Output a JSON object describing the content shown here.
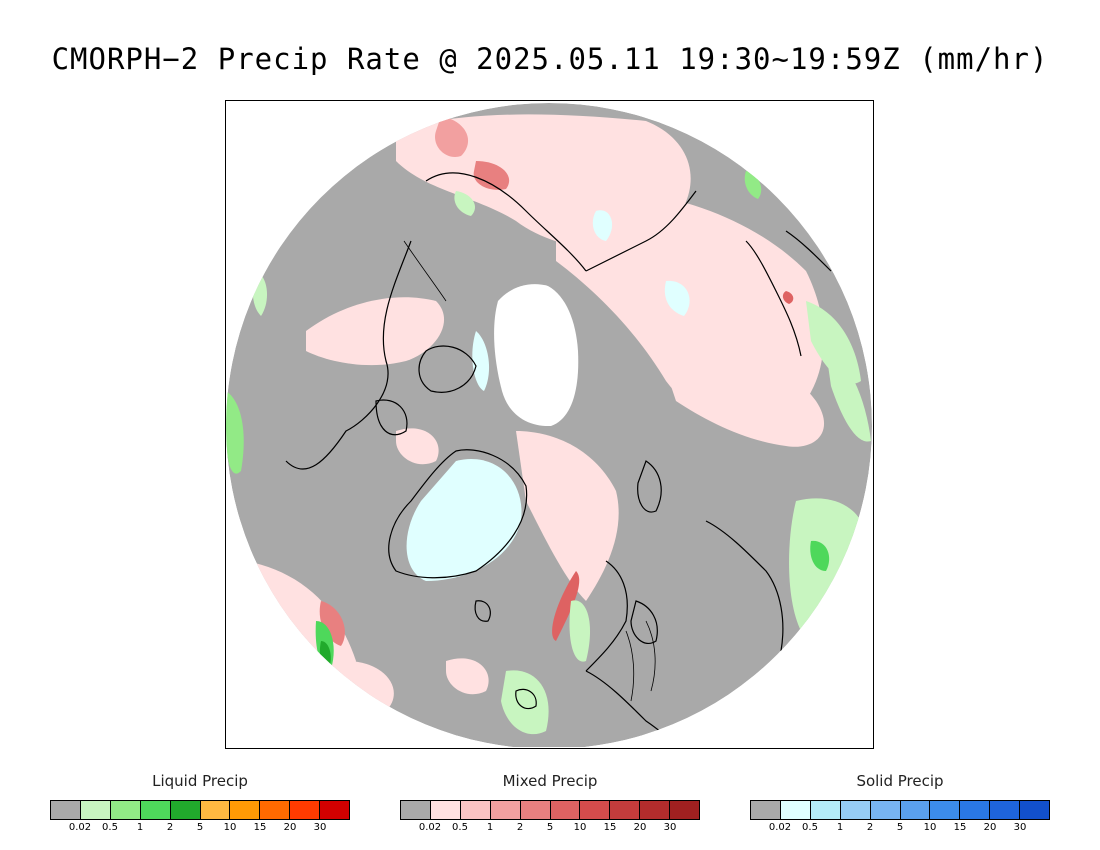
{
  "title": "CMORPH−2 Precip Rate @ 2025.05.11 19:30~19:59Z (mm/hr)",
  "map": {
    "projection": "polar-stereographic-north",
    "no_data_color": "#ffffff",
    "no_precip_color": "#a9a9a9",
    "coastline_color": "#000000"
  },
  "legends": [
    {
      "title": "Liquid Precip",
      "colors": [
        "#a9a9a9",
        "#c8f5c0",
        "#92ea86",
        "#4ed85b",
        "#21aa2c",
        "#ffb841",
        "#ff9a05",
        "#ff6a00",
        "#ff3b00",
        "#d20000"
      ],
      "ticks": [
        "0.02",
        "0.5",
        "1",
        "2",
        "5",
        "10",
        "15",
        "20",
        "30"
      ]
    },
    {
      "title": "Mixed Precip",
      "colors": [
        "#a9a9a9",
        "#ffe1e1",
        "#fbc4c4",
        "#f2a0a0",
        "#e88080",
        "#de6262",
        "#d44c4c",
        "#c43c3c",
        "#b22c2c",
        "#a02020"
      ],
      "ticks": [
        "0.02",
        "0.5",
        "1",
        "2",
        "5",
        "10",
        "15",
        "20",
        "30"
      ]
    },
    {
      "title": "Solid Precip",
      "colors": [
        "#a9a9a9",
        "#e0ffff",
        "#b4ecf8",
        "#96cdf6",
        "#78b4f2",
        "#5aa0ee",
        "#3c8cea",
        "#2a78e4",
        "#1e64dc",
        "#1250cc"
      ],
      "ticks": [
        "0.02",
        "0.5",
        "1",
        "2",
        "5",
        "10",
        "15",
        "20",
        "30"
      ]
    }
  ]
}
